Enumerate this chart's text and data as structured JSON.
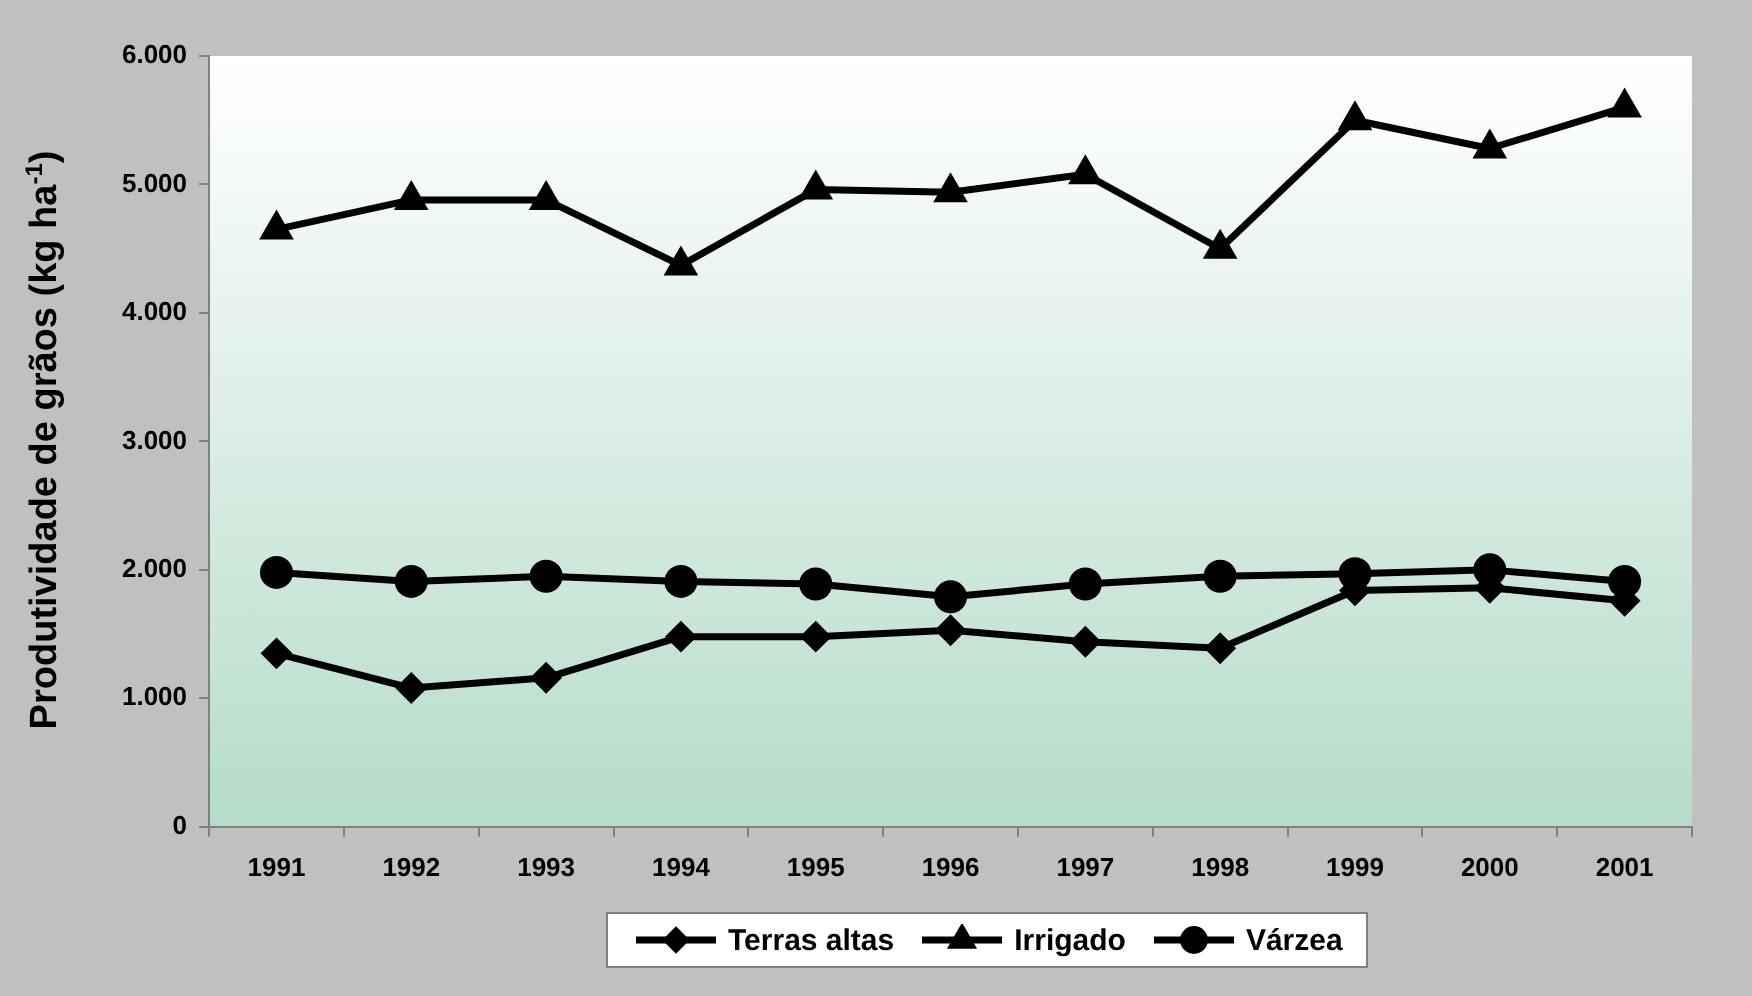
{
  "chart_data": {
    "type": "line",
    "ylabel": "Produtividade de grãos (kg ha$^{-1}$)",
    "categories": [
      "1991",
      "1992",
      "1993",
      "1994",
      "1995",
      "1996",
      "1997",
      "1998",
      "1999",
      "2000",
      "2001"
    ],
    "series": [
      {
        "name": "Terras altas",
        "color": "#000000",
        "marker": "diamond",
        "values": [
          1350,
          1080,
          1160,
          1480,
          1480,
          1530,
          1440,
          1390,
          1840,
          1860,
          1760
        ]
      },
      {
        "name": "Irrigado",
        "color": "#000000",
        "marker": "triangle",
        "values": [
          4650,
          4880,
          4880,
          4370,
          4960,
          4940,
          5080,
          4500,
          5500,
          5280,
          5600
        ]
      },
      {
        "name": "Várzea",
        "color": "#000000",
        "marker": "circle",
        "values": [
          1980,
          1910,
          1950,
          1910,
          1890,
          1790,
          1890,
          1950,
          1970,
          2000,
          1910
        ]
      }
    ],
    "ylim": [
      0,
      6000
    ],
    "yticks": [
      {
        "value": 0,
        "label": "0"
      },
      {
        "value": 1000,
        "label": "1.000"
      },
      {
        "value": 2000,
        "label": "2.000"
      },
      {
        "value": 3000,
        "label": "3.000"
      },
      {
        "value": 4000,
        "label": "4.000"
      },
      {
        "value": 5000,
        "label": "5.000"
      },
      {
        "value": 6000,
        "label": "6.000"
      }
    ],
    "grid": false,
    "legend": "bottom"
  }
}
